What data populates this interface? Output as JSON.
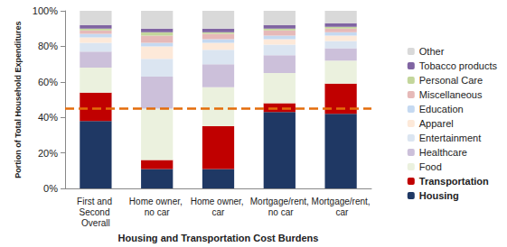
{
  "chart_data": {
    "type": "bar",
    "stacked": true,
    "grid": false,
    "legend": "right",
    "x_label": "Housing and Transportation Cost Burdens",
    "y_label": "Portion of Total Household Expenditures",
    "categories": [
      "First and Second Overall",
      "Home owner, no car",
      "Home owner, car",
      "Mortgage/rent, no car",
      "Mortgage/rent, car"
    ],
    "ylim": [
      0,
      100
    ],
    "yticks": [
      {
        "value": 0,
        "label": "0%"
      },
      {
        "value": 20,
        "label": "20%"
      },
      {
        "value": 40,
        "label": "40%"
      },
      {
        "value": 60,
        "label": "60%"
      },
      {
        "value": 80,
        "label": "80%"
      },
      {
        "value": 100,
        "label": "100%"
      }
    ],
    "series": [
      {
        "name": "Housing",
        "color": "#1f3864",
        "values": [
          38,
          11,
          11,
          43,
          42
        ]
      },
      {
        "name": "Transportation",
        "color": "#c00000",
        "values": [
          16,
          5,
          24,
          5,
          17
        ]
      },
      {
        "name": "Food",
        "color": "#ebf1de",
        "values": [
          14,
          29,
          22,
          17,
          13
        ]
      },
      {
        "name": "Healthcare",
        "color": "#ccc0da",
        "values": [
          9,
          18,
          13,
          10,
          7
        ]
      },
      {
        "name": "Entertainment",
        "color": "#dbe5f1",
        "values": [
          5,
          10,
          8,
          6,
          4
        ]
      },
      {
        "name": "Apparel",
        "color": "#fde9d9",
        "values": [
          3,
          7,
          4,
          3,
          3
        ]
      },
      {
        "name": "Education",
        "color": "#c5d9f1",
        "values": [
          2,
          2,
          2,
          2,
          2
        ]
      },
      {
        "name": "Miscellaneous",
        "color": "#e6b9b8",
        "values": [
          2,
          4,
          3,
          3,
          2
        ]
      },
      {
        "name": "Personal Care",
        "color": "#c3d69b",
        "values": [
          1,
          2,
          1,
          1,
          1
        ]
      },
      {
        "name": "Tobacco products",
        "color": "#8064a2",
        "values": [
          2,
          2,
          2,
          2,
          2
        ]
      },
      {
        "name": "Other",
        "color": "#d9d9d9",
        "values": [
          8,
          10,
          10,
          8,
          7
        ]
      },
      {
        "type": "line",
        "line_style": "dashed",
        "color": "#e46c0a",
        "values": [
          45,
          45,
          45,
          45,
          45
        ]
      }
    ]
  }
}
